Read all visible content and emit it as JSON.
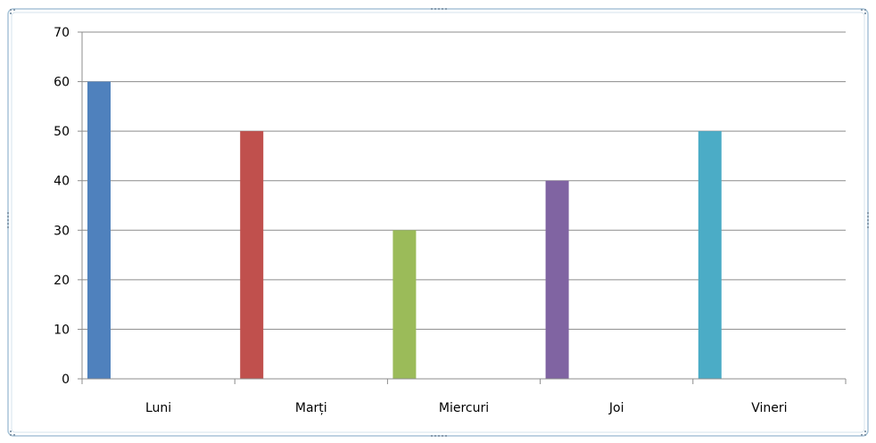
{
  "chart_data": {
    "type": "bar",
    "title": "",
    "xlabel": "",
    "ylabel": "",
    "categories": [
      "Luni",
      "Marți",
      "Miercuri",
      "Joi",
      "Vineri"
    ],
    "series": [
      {
        "values": [
          60,
          50,
          30,
          40,
          50
        ]
      }
    ],
    "bar_colors": [
      "#4f81bd",
      "#c0504d",
      "#9bbb59",
      "#8064a2",
      "#4bacc6"
    ],
    "ylim": [
      0,
      70
    ],
    "yticks": [
      0,
      10,
      20,
      30,
      40,
      50,
      60,
      70
    ],
    "grid": true,
    "legend": "none"
  }
}
